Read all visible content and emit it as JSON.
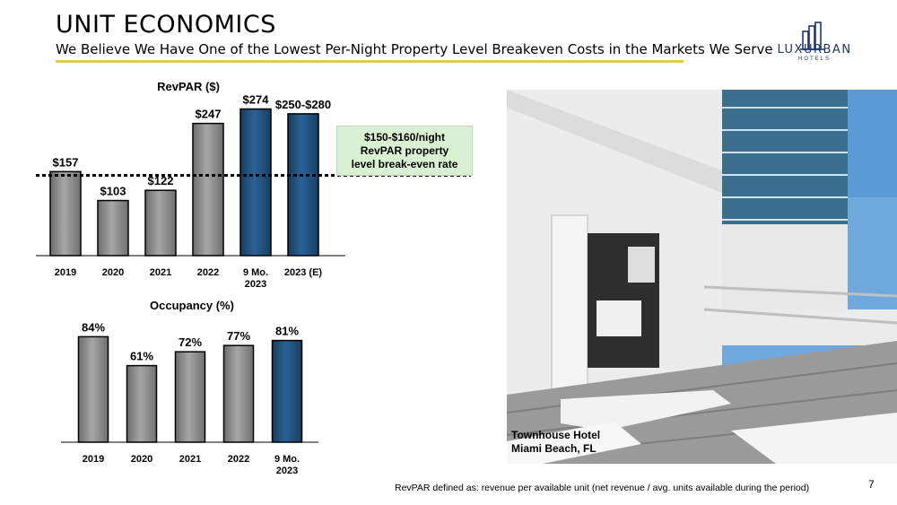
{
  "header": {
    "title": "UNIT ECONOMICS",
    "subtitle": "We Believe We Have One of the Lowest Per-Night Property Level Breakeven Costs in the Markets We Serve"
  },
  "logo": {
    "word": "LUXURBAN",
    "sub": "HOTELS"
  },
  "breakeven_box": {
    "line1": "$150-$160/night",
    "line2": "RevPAR property",
    "line3": "level break-even rate"
  },
  "photo": {
    "caption_line1": "Townhouse Hotel",
    "caption_line2": "Miami Beach, FL"
  },
  "footnote": "RevPAR defined as: revenue per available unit (net revenue / avg. units available during the period)",
  "page_number": "7",
  "colors": {
    "gray": "#8c8c8c",
    "blue": "#1f4e79",
    "accent": "#e3c94a"
  },
  "chart_data": [
    {
      "type": "bar",
      "title": "RevPAR ($)",
      "categories": [
        "2019",
        "2020",
        "2021",
        "2022",
        "9 Mo. 2023",
        "2023 (E)"
      ],
      "category_lines": [
        [
          "2019"
        ],
        [
          "2020"
        ],
        [
          "2021"
        ],
        [
          "2022"
        ],
        [
          "9 Mo.",
          "2023"
        ],
        [
          "2023 (E)"
        ]
      ],
      "values": [
        157,
        103,
        122,
        247,
        274,
        265
      ],
      "value_labels": [
        "$157",
        "$103",
        "$122",
        "$247",
        "$274",
        "$250-$280"
      ],
      "bar_colors": [
        "gray",
        "gray",
        "gray",
        "gray",
        "blue",
        "blue"
      ],
      "reference_line": 150,
      "ylim": [
        0,
        300
      ]
    },
    {
      "type": "bar",
      "title": "Occupancy (%)",
      "categories": [
        "2019",
        "2020",
        "2021",
        "2022",
        "9 Mo. 2023"
      ],
      "category_lines": [
        [
          "2019"
        ],
        [
          "2020"
        ],
        [
          "2021"
        ],
        [
          "2022"
        ],
        [
          "9 Mo.",
          "2023"
        ]
      ],
      "values": [
        84,
        61,
        72,
        77,
        81
      ],
      "value_labels": [
        "84%",
        "61%",
        "72%",
        "77%",
        "81%"
      ],
      "bar_colors": [
        "gray",
        "gray",
        "gray",
        "gray",
        "blue"
      ],
      "ylim": [
        0,
        100
      ]
    }
  ]
}
